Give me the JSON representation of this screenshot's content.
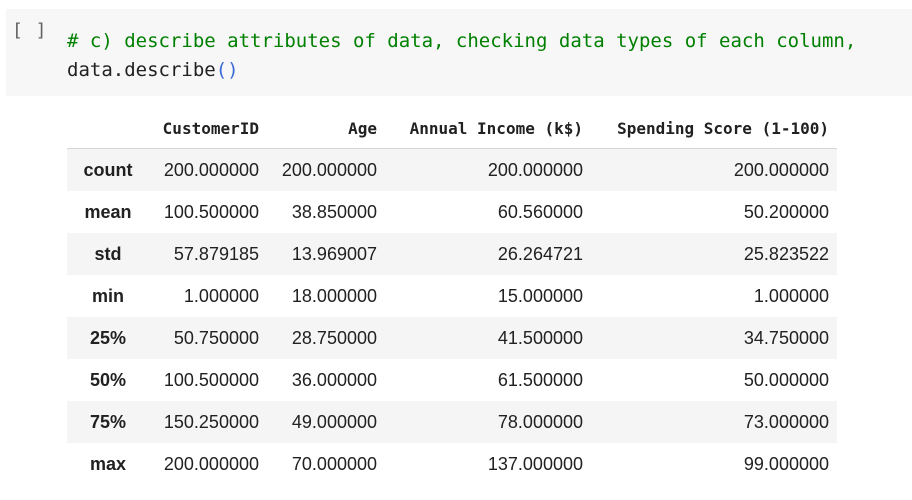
{
  "cell": {
    "run_label": "[ ]",
    "code_line1": "# c) describe attributes of data, checking data types of each column,",
    "code_line2_prefix": "data.describe",
    "code_line2_parens": "()"
  },
  "table": {
    "columns": [
      "",
      "CustomerID",
      "Age",
      "Annual Income (k$)",
      "Spending Score (1-100)"
    ],
    "rows": [
      {
        "index": "count",
        "values": [
          "200.000000",
          "200.000000",
          "200.000000",
          "200.000000"
        ]
      },
      {
        "index": "mean",
        "values": [
          "100.500000",
          "38.850000",
          "60.560000",
          "50.200000"
        ]
      },
      {
        "index": "std",
        "values": [
          "57.879185",
          "13.969007",
          "26.264721",
          "25.823522"
        ]
      },
      {
        "index": "min",
        "values": [
          "1.000000",
          "18.000000",
          "15.000000",
          "1.000000"
        ]
      },
      {
        "index": "25%",
        "values": [
          "50.750000",
          "28.750000",
          "41.500000",
          "34.750000"
        ]
      },
      {
        "index": "50%",
        "values": [
          "100.500000",
          "36.000000",
          "61.500000",
          "50.000000"
        ]
      },
      {
        "index": "75%",
        "values": [
          "150.250000",
          "49.000000",
          "78.000000",
          "73.000000"
        ]
      },
      {
        "index": "max",
        "values": [
          "200.000000",
          "70.000000",
          "137.000000",
          "99.000000"
        ]
      }
    ]
  }
}
